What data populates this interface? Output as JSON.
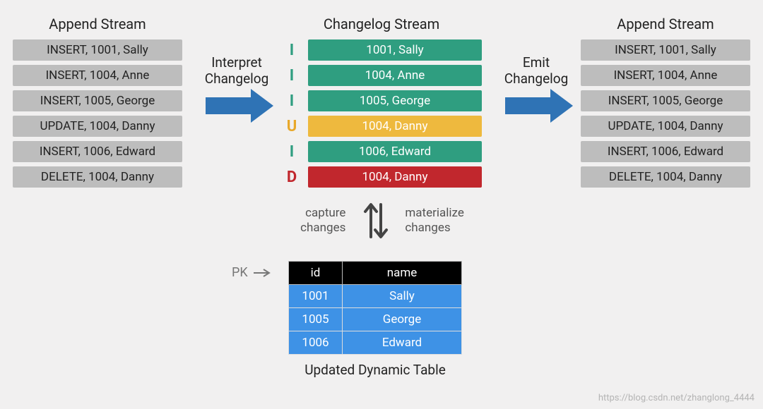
{
  "colors": {
    "grey_row_bg": "#bdbdbd",
    "insert_bg": "#2f9e80",
    "update_bg": "#eeb93e",
    "delete_bg": "#c1272d",
    "insert_letter": "#2f9e80",
    "update_letter": "#e8a82a",
    "delete_letter": "#c1272d",
    "arrow": "#2f73b5",
    "table_row_bg": "#3e92e6",
    "table_head_bg": "#000000",
    "page_bg": "#f1f0f0"
  },
  "labels": {
    "left_heading": "Append Stream",
    "mid_heading": "Changelog Stream",
    "right_heading": "Append Stream",
    "interpret_l1": "Interpret",
    "interpret_l2": "Changelog",
    "emit_l1": "Emit",
    "emit_l2": "Changelog",
    "capture_l1": "capture",
    "capture_l2": "changes",
    "materialize_l1": "materialize",
    "materialize_l2": "changes",
    "pk": "PK",
    "dyn_caption": "Updated Dynamic Table",
    "watermark": "https://blog.csdn.net/zhanglong_4444"
  },
  "append_left": [
    "INSERT, 1001, Sally",
    "INSERT, 1004, Anne",
    "INSERT, 1005, George",
    "UPDATE, 1004, Danny",
    "INSERT, 1006, Edward",
    "DELETE, 1004, Danny"
  ],
  "append_right": [
    "INSERT, 1001, Sally",
    "INSERT, 1004, Anne",
    "INSERT, 1005, George",
    "UPDATE, 1004, Danny",
    "INSERT, 1006, Edward",
    "DELETE, 1004, Danny"
  ],
  "changelog": [
    {
      "op": "I",
      "text": "1001, Sally",
      "kind": "insert"
    },
    {
      "op": "I",
      "text": "1004, Anne",
      "kind": "insert"
    },
    {
      "op": "I",
      "text": "1005, George",
      "kind": "insert"
    },
    {
      "op": "U",
      "text": "1004, Danny",
      "kind": "update"
    },
    {
      "op": "I",
      "text": "1006, Edward",
      "kind": "insert"
    },
    {
      "op": "D",
      "text": "1004, Danny",
      "kind": "delete"
    }
  ],
  "dyn_table": {
    "columns": [
      "id",
      "name"
    ],
    "rows": [
      [
        "1001",
        "Sally"
      ],
      [
        "1005",
        "George"
      ],
      [
        "1006",
        "Edward"
      ]
    ]
  }
}
